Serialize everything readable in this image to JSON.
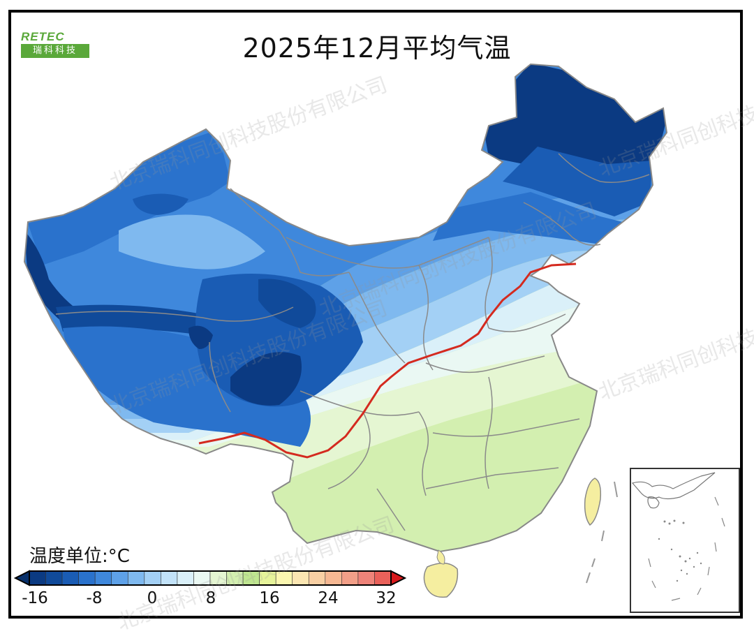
{
  "title": "2025年12月平均气温",
  "logo": {
    "top_text": "RETEC",
    "bottom_text": "瑞科科技"
  },
  "unit_label": "温度单位:°C",
  "watermark": "北京瑞科同创科技股份有限公司",
  "legend": {
    "ticks": [
      "-16",
      "-8",
      "0",
      "8",
      "16",
      "24",
      "32"
    ],
    "colors": [
      "#0b3a82",
      "#104a9a",
      "#1a5cb4",
      "#2a72cc",
      "#3f88dc",
      "#5ea1e8",
      "#7fb9ef",
      "#a3d0f5",
      "#c2e2f8",
      "#daf0f9",
      "#eaf8f3",
      "#e5f6d2",
      "#d3efb0",
      "#bfe690",
      "#e6f39a",
      "#fbf7b0",
      "#fbe6b2",
      "#f9d0a4",
      "#f6b893",
      "#f29f88",
      "#ee8379",
      "#e9615a"
    ],
    "low_cap_color": "#08306b",
    "high_cap_color": "#d7191c"
  },
  "map_colors": {
    "deep_cold": "#0b3a82",
    "cold": "#2a72cc",
    "cool": "#7fb9ef",
    "mild": "#daf0f9",
    "warm": "#d3efb0",
    "warmest": "#c8eb8c",
    "island": "#f5eea0",
    "zero_line": "#d42a1f",
    "border": "#888888"
  }
}
